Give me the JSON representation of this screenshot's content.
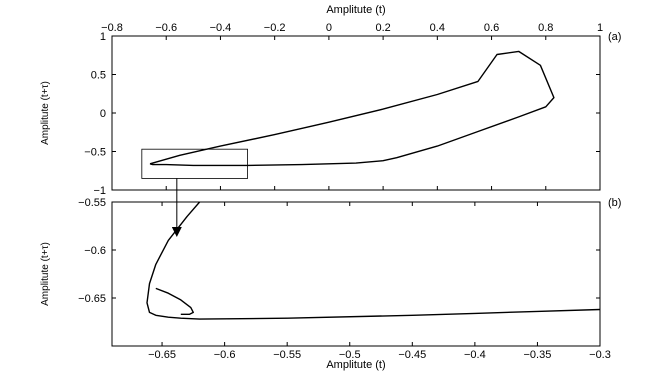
{
  "chart_data": [
    {
      "type": "line",
      "panel_label": "(a)",
      "xlabel": "Amplitute (t)",
      "ylabel": "Amplitute (t+τ)",
      "xlim": [
        -0.8,
        1.0
      ],
      "ylim": [
        -1.0,
        1.0
      ],
      "x_ticks": [
        -0.8,
        -0.6,
        -0.4,
        -0.2,
        0,
        0.2,
        0.4,
        0.6,
        0.8,
        1
      ],
      "x_tick_labels": [
        "−0.8",
        "−0.6",
        "−0.4",
        "−0.2",
        "0",
        "0.2",
        "0.4",
        "0.6",
        "0.8",
        "1"
      ],
      "y_ticks": [
        1,
        0.5,
        0,
        -0.5,
        -1
      ],
      "y_tick_labels": [
        "1",
        "0.5",
        "0",
        "−0.5",
        "−1"
      ],
      "xaxis_position": "top",
      "grid": false,
      "series": [
        {
          "color": "#000000",
          "x": [
            -0.66,
            -0.55,
            -0.4,
            -0.2,
            0,
            0.2,
            0.4,
            0.55,
            0.62,
            0.7,
            0.78,
            0.83,
            0.8,
            0.7,
            0.55,
            0.4,
            0.25,
            0.2,
            0.1,
            -0.1,
            -0.3,
            -0.5,
            -0.6,
            -0.65,
            -0.66
          ],
          "y": [
            -0.66,
            -0.55,
            -0.43,
            -0.28,
            -0.12,
            0.05,
            0.24,
            0.41,
            0.76,
            0.8,
            0.62,
            0.2,
            0.08,
            -0.05,
            -0.24,
            -0.43,
            -0.58,
            -0.62,
            -0.65,
            -0.67,
            -0.68,
            -0.68,
            -0.67,
            -0.67,
            -0.66
          ]
        }
      ],
      "annotation": "zoom box around the lower-left corner with an arrow pointing to panel (b)",
      "zoom_box": {
        "x": [
          -0.69,
          -0.3
        ],
        "y": [
          -0.85,
          -0.47
        ]
      }
    },
    {
      "type": "line",
      "panel_label": "(b)",
      "xlabel": "Amplitute (t)",
      "ylabel": "Amplitute (t+τ)",
      "xlim": [
        -0.69,
        -0.3
      ],
      "ylim": [
        -0.7,
        -0.55
      ],
      "x_ticks": [
        -0.65,
        -0.6,
        -0.55,
        -0.5,
        -0.45,
        -0.4,
        -0.35,
        -0.3
      ],
      "x_tick_labels": [
        "−0.65",
        "−0.6",
        "−0.55",
        "−0.5",
        "−0.45",
        "−0.4",
        "−0.35",
        "−0.3"
      ],
      "y_ticks": [
        -0.55,
        -0.6,
        -0.65
      ],
      "y_tick_labels": [
        "−0.55",
        "−0.6",
        "−0.65"
      ],
      "grid": false,
      "series": [
        {
          "color": "#000000",
          "x": [
            -0.62,
            -0.63,
            -0.645,
            -0.655,
            -0.66,
            -0.662,
            -0.66,
            -0.655,
            -0.645,
            -0.635,
            -0.62,
            -0.55,
            -0.45,
            -0.4,
            -0.35,
            -0.3
          ],
          "y": [
            -0.55,
            -0.565,
            -0.59,
            -0.615,
            -0.635,
            -0.655,
            -0.665,
            -0.668,
            -0.67,
            -0.671,
            -0.672,
            -0.671,
            -0.668,
            -0.666,
            -0.664,
            -0.662
          ]
        },
        {
          "color": "#000000",
          "x": [
            -0.655,
            -0.645,
            -0.635,
            -0.627,
            -0.625,
            -0.628,
            -0.635
          ],
          "y": [
            -0.64,
            -0.645,
            -0.652,
            -0.66,
            -0.665,
            -0.667,
            -0.667
          ]
        }
      ]
    }
  ]
}
